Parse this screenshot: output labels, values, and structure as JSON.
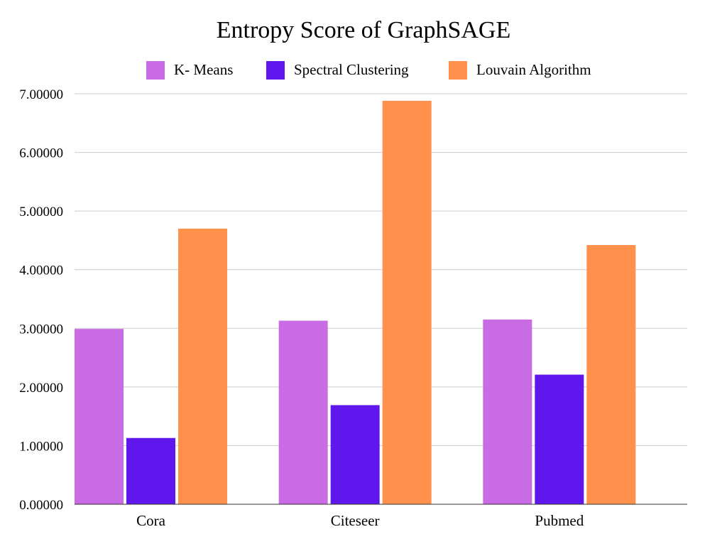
{
  "chart_data": {
    "type": "bar",
    "title": "Entropy Score of GraphSAGE",
    "categories": [
      "Cora",
      "Citeseer",
      "Pubmed"
    ],
    "series": [
      {
        "name": "K- Means",
        "color": "#c96be5",
        "values": [
          2.99,
          3.13,
          3.15
        ]
      },
      {
        "name": "Spectral Clustering",
        "color": "#5f17ee",
        "values": [
          1.13,
          1.69,
          2.21
        ]
      },
      {
        "name": "Louvain Algorithm",
        "color": "#ff914d",
        "values": [
          4.7,
          6.88,
          4.42
        ]
      }
    ],
    "xlabel": "",
    "ylabel": "",
    "ylim": [
      0,
      7
    ],
    "yticks": [
      0,
      1,
      2,
      3,
      4,
      5,
      6,
      7
    ],
    "ytick_labels": [
      "0.00000",
      "1.00000",
      "2.00000",
      "3.00000",
      "4.00000",
      "5.00000",
      "6.00000",
      "7.00000"
    ],
    "grid": true,
    "legend_position": "top"
  }
}
